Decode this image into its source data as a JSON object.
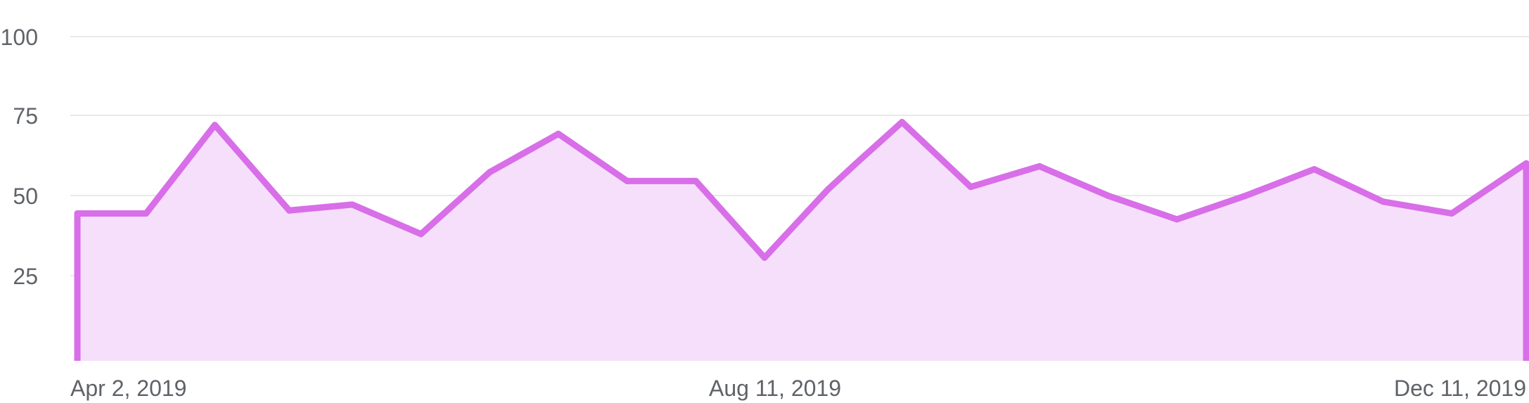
{
  "chart_data": {
    "type": "area",
    "title": "",
    "xlabel": "",
    "ylabel": "",
    "x_tick_labels": [
      "Apr 2, 2019",
      "Aug 11, 2019",
      "Dec 11, 2019"
    ],
    "y_ticks": [
      25,
      50,
      75,
      100
    ],
    "ylim": [
      -2,
      108
    ],
    "grid": true,
    "legend": "none",
    "x_range": [
      "2019-04-02",
      "2019-12-11"
    ],
    "series": [
      {
        "color": "#d86ee8",
        "fill": "#f6dffb",
        "points": [
          [
            "2019-04-02",
            48
          ],
          [
            "2019-04-14",
            48
          ],
          [
            "2019-04-26",
            78
          ],
          [
            "2019-05-09",
            49
          ],
          [
            "2019-05-20",
            51
          ],
          [
            "2019-06-01",
            41
          ],
          [
            "2019-06-13",
            62
          ],
          [
            "2019-06-25",
            75
          ],
          [
            "2019-07-07",
            59
          ],
          [
            "2019-07-19",
            59
          ],
          [
            "2019-07-31",
            33
          ],
          [
            "2019-08-11",
            56
          ],
          [
            "2019-08-16",
            65
          ],
          [
            "2019-08-24",
            79
          ],
          [
            "2019-09-05",
            57
          ],
          [
            "2019-09-17",
            64
          ],
          [
            "2019-09-29",
            54
          ],
          [
            "2019-10-11",
            46
          ],
          [
            "2019-10-23",
            54
          ],
          [
            "2019-11-04",
            63
          ],
          [
            "2019-11-16",
            52
          ],
          [
            "2019-11-28",
            48
          ],
          [
            "2019-12-11",
            65
          ]
        ]
      }
    ]
  }
}
